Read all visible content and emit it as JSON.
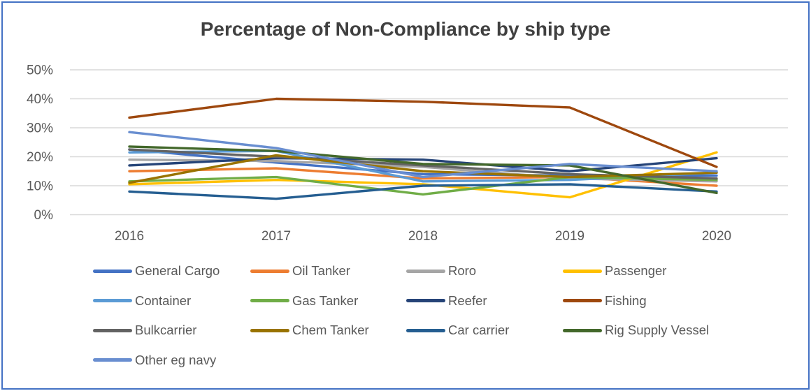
{
  "frame": {
    "border_color": "#4472C4",
    "background": "#FFFFFF"
  },
  "chart_data": {
    "type": "line",
    "title": "Percentage of Non-Compliance by ship type",
    "title_color": "#404040",
    "x_labels": [
      "2016",
      "2017",
      "2018",
      "2019",
      "2020"
    ],
    "y_tick_labels": [
      "0%",
      "10%",
      "20%",
      "30%",
      "40%",
      "50%"
    ],
    "ylim": [
      0,
      50
    ],
    "y_tick_step": 10,
    "y_unit": "%",
    "grid": true,
    "gridline_color": "#D9D9D9",
    "axis_text_color": "#595959",
    "legend_position": "bottom",
    "series": [
      {
        "name": "General Cargo",
        "color": "#4472C4",
        "values": [
          22.5,
          18,
          14,
          13.5,
          13.5
        ]
      },
      {
        "name": "Oil Tanker",
        "color": "#ED7D31",
        "values": [
          15,
          16,
          12.5,
          13,
          10
        ]
      },
      {
        "name": "Roro",
        "color": "#A5A5A5",
        "values": [
          19,
          18.5,
          16.5,
          12.5,
          11.5
        ]
      },
      {
        "name": "Passenger",
        "color": "#FFC000",
        "values": [
          10.5,
          12,
          10.5,
          6,
          21.5
        ]
      },
      {
        "name": "Container",
        "color": "#5B9BD5",
        "values": [
          21.5,
          22,
          11.5,
          12,
          14.5
        ]
      },
      {
        "name": "Gas Tanker",
        "color": "#70AD47",
        "values": [
          11.5,
          13,
          7,
          13,
          12
        ]
      },
      {
        "name": "Reefer",
        "color": "#264478",
        "values": [
          17,
          19.5,
          19,
          15,
          19.5
        ]
      },
      {
        "name": "Fishing",
        "color": "#9E480E",
        "values": [
          33.5,
          40,
          39,
          37,
          16.5
        ]
      },
      {
        "name": "Bulkcarrier",
        "color": "#636363",
        "values": [
          22.5,
          20,
          17,
          14,
          12.5
        ]
      },
      {
        "name": "Chem Tanker",
        "color": "#997300",
        "values": [
          11,
          20.5,
          15,
          13,
          14.5
        ]
      },
      {
        "name": "Car carrier",
        "color": "#255E91",
        "values": [
          8,
          5.5,
          10,
          10.5,
          8
        ]
      },
      {
        "name": "Rig Supply Vessel",
        "color": "#43682B",
        "values": [
          23.5,
          22,
          17.5,
          17,
          7.5
        ]
      },
      {
        "name": "Other eg navy",
        "color": "#698ED0",
        "values": [
          28.5,
          23,
          13,
          17.5,
          15
        ]
      }
    ]
  }
}
